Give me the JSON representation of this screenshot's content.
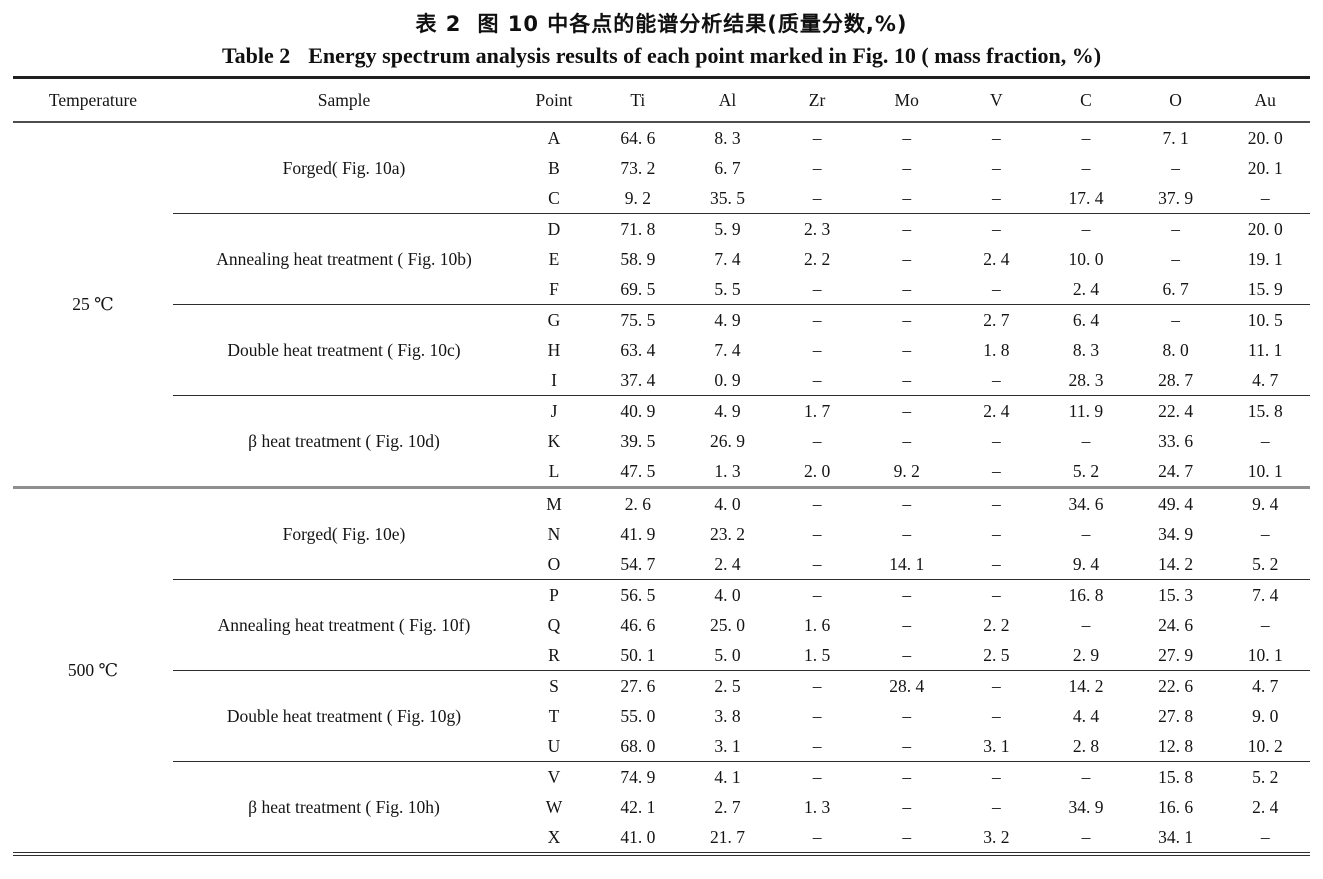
{
  "page": {
    "title_zh": {
      "label": "表 2",
      "text": "图 10 中各点的能谱分析结果(质量分数,%)"
    },
    "title_en": {
      "label": "Table 2",
      "text": "Energy spectrum analysis results of each point marked in Fig. 10 ( mass fraction, %)"
    }
  },
  "table": {
    "headers": [
      "Temperature",
      "Sample",
      "Point",
      "Ti",
      "Al",
      "Zr",
      "Mo",
      "V",
      "C",
      "O",
      "Au"
    ],
    "temperature_groups": [
      {
        "temperature": "25 ℃"
      },
      {
        "temperature": "500 ℃"
      }
    ],
    "samples": [
      {
        "label": "Forged( Fig. 10a)"
      },
      {
        "label": "Annealing heat treatment ( Fig. 10b)"
      },
      {
        "label": "Double heat treatment ( Fig. 10c)"
      },
      {
        "label": "β heat treatment ( Fig. 10d)"
      },
      {
        "label": "Forged( Fig. 10e)"
      },
      {
        "label": "Annealing heat treatment ( Fig. 10f)"
      },
      {
        "label": "Double heat treatment ( Fig. 10g)"
      },
      {
        "label": "β heat treatment ( Fig. 10h)"
      }
    ],
    "rows": [
      {
        "point": "A",
        "ti": "64. 6",
        "al": "8. 3",
        "zr": "–",
        "mo": "–",
        "v": "–",
        "c": "–",
        "o": "7. 1",
        "au": "20. 0"
      },
      {
        "point": "B",
        "ti": "73. 2",
        "al": "6. 7",
        "zr": "–",
        "mo": "–",
        "v": "–",
        "c": "–",
        "o": "–",
        "au": "20. 1"
      },
      {
        "point": "C",
        "ti": "9. 2",
        "al": "35. 5",
        "zr": "–",
        "mo": "–",
        "v": "–",
        "c": "17. 4",
        "o": "37. 9",
        "au": "–"
      },
      {
        "point": "D",
        "ti": "71. 8",
        "al": "5. 9",
        "zr": "2. 3",
        "mo": "–",
        "v": "–",
        "c": "–",
        "o": "–",
        "au": "20. 0"
      },
      {
        "point": "E",
        "ti": "58. 9",
        "al": "7. 4",
        "zr": "2. 2",
        "mo": "–",
        "v": "2. 4",
        "c": "10. 0",
        "o": "–",
        "au": "19. 1"
      },
      {
        "point": "F",
        "ti": "69. 5",
        "al": "5. 5",
        "zr": "–",
        "mo": "–",
        "v": "–",
        "c": "2. 4",
        "o": "6. 7",
        "au": "15. 9"
      },
      {
        "point": "G",
        "ti": "75. 5",
        "al": "4. 9",
        "zr": "–",
        "mo": "–",
        "v": "2. 7",
        "c": "6. 4",
        "o": "–",
        "au": "10. 5"
      },
      {
        "point": "H",
        "ti": "63. 4",
        "al": "7. 4",
        "zr": "–",
        "mo": "–",
        "v": "1. 8",
        "c": "8. 3",
        "o": "8. 0",
        "au": "11. 1"
      },
      {
        "point": "I",
        "ti": "37. 4",
        "al": "0. 9",
        "zr": "–",
        "mo": "–",
        "v": "–",
        "c": "28. 3",
        "o": "28. 7",
        "au": "4. 7"
      },
      {
        "point": "J",
        "ti": "40. 9",
        "al": "4. 9",
        "zr": "1. 7",
        "mo": "–",
        "v": "2. 4",
        "c": "11. 9",
        "o": "22. 4",
        "au": "15. 8"
      },
      {
        "point": "K",
        "ti": "39. 5",
        "al": "26. 9",
        "zr": "–",
        "mo": "–",
        "v": "–",
        "c": "–",
        "o": "33. 6",
        "au": "–"
      },
      {
        "point": "L",
        "ti": "47. 5",
        "al": "1. 3",
        "zr": "2. 0",
        "mo": "9. 2",
        "v": "–",
        "c": "5. 2",
        "o": "24. 7",
        "au": "10. 1"
      },
      {
        "point": "M",
        "ti": "2. 6",
        "al": "4. 0",
        "zr": "–",
        "mo": "–",
        "v": "–",
        "c": "34. 6",
        "o": "49. 4",
        "au": "9. 4"
      },
      {
        "point": "N",
        "ti": "41. 9",
        "al": "23. 2",
        "zr": "–",
        "mo": "–",
        "v": "–",
        "c": "–",
        "o": "34. 9",
        "au": "–"
      },
      {
        "point": "O",
        "ti": "54. 7",
        "al": "2. 4",
        "zr": "–",
        "mo": "14. 1",
        "v": "–",
        "c": "9. 4",
        "o": "14. 2",
        "au": "5. 2"
      },
      {
        "point": "P",
        "ti": "56. 5",
        "al": "4. 0",
        "zr": "–",
        "mo": "–",
        "v": "–",
        "c": "16. 8",
        "o": "15. 3",
        "au": "7. 4"
      },
      {
        "point": "Q",
        "ti": "46. 6",
        "al": "25. 0",
        "zr": "1. 6",
        "mo": "–",
        "v": "2. 2",
        "c": "–",
        "o": "24. 6",
        "au": "–"
      },
      {
        "point": "R",
        "ti": "50. 1",
        "al": "5. 0",
        "zr": "1. 5",
        "mo": "–",
        "v": "2. 5",
        "c": "2. 9",
        "o": "27. 9",
        "au": "10. 1"
      },
      {
        "point": "S",
        "ti": "27. 6",
        "al": "2. 5",
        "zr": "–",
        "mo": "28. 4",
        "v": "–",
        "c": "14. 2",
        "o": "22. 6",
        "au": "4. 7"
      },
      {
        "point": "T",
        "ti": "55. 0",
        "al": "3. 8",
        "zr": "–",
        "mo": "–",
        "v": "–",
        "c": "4. 4",
        "o": "27. 8",
        "au": "9. 0"
      },
      {
        "point": "U",
        "ti": "68. 0",
        "al": "3. 1",
        "zr": "–",
        "mo": "–",
        "v": "3. 1",
        "c": "2. 8",
        "o": "12. 8",
        "au": "10. 2"
      },
      {
        "point": "V",
        "ti": "74. 9",
        "al": "4. 1",
        "zr": "–",
        "mo": "–",
        "v": "–",
        "c": "–",
        "o": "15. 8",
        "au": "5. 2"
      },
      {
        "point": "W",
        "ti": "42. 1",
        "al": "2. 7",
        "zr": "1. 3",
        "mo": "–",
        "v": "–",
        "c": "34. 9",
        "o": "16. 6",
        "au": "2. 4"
      },
      {
        "point": "X",
        "ti": "41. 0",
        "al": "21. 7",
        "zr": "–",
        "mo": "–",
        "v": "3. 2",
        "c": "–",
        "o": "34. 1",
        "au": "–"
      }
    ]
  }
}
